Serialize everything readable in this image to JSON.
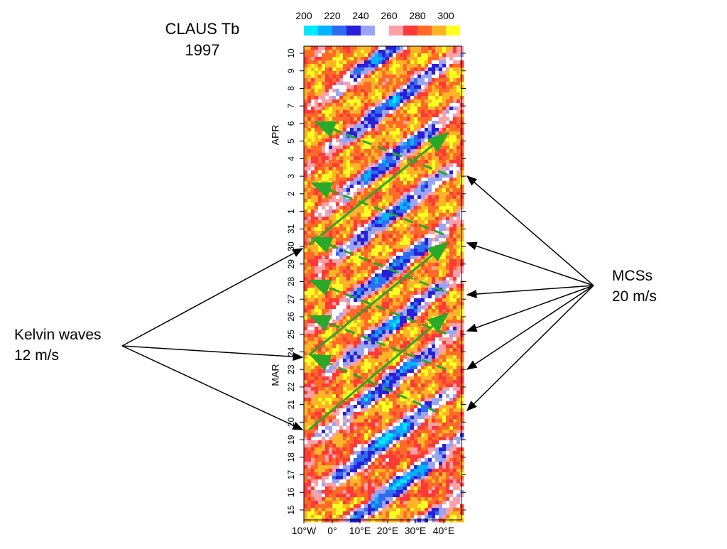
{
  "figure": {
    "title": [
      "CLAUS Tb",
      "1997"
    ],
    "colorbar": {
      "ticks": [
        200,
        220,
        240,
        260,
        280,
        300
      ],
      "colors": [
        "#00e8ff",
        "#00b4ff",
        "#2e6cf0",
        "#2a1fd8",
        "#9aa4f4",
        "#ffffff",
        "#ffa0a8",
        "#ff3838",
        "#ff6a28",
        "#ffb428",
        "#ffff20"
      ]
    },
    "y_ticks": [
      "15",
      "16",
      "17",
      "18",
      "19",
      "20",
      "21",
      "22",
      "23",
      "24",
      "25",
      "26",
      "27",
      "28",
      "29",
      "30",
      "31",
      "1",
      "2",
      "3",
      "4",
      "5",
      "6",
      "7",
      "8",
      "9",
      "10"
    ],
    "months": [
      "MAR",
      "APR"
    ],
    "x_ticks": [
      "10°W",
      "0°",
      "10°E",
      "20°E",
      "30°E",
      "40°E"
    ],
    "annotations": {
      "kelvin": [
        "Kelvin waves",
        "12 m/s"
      ],
      "mcs": [
        "MCSs",
        "20 m/s"
      ]
    }
  }
}
